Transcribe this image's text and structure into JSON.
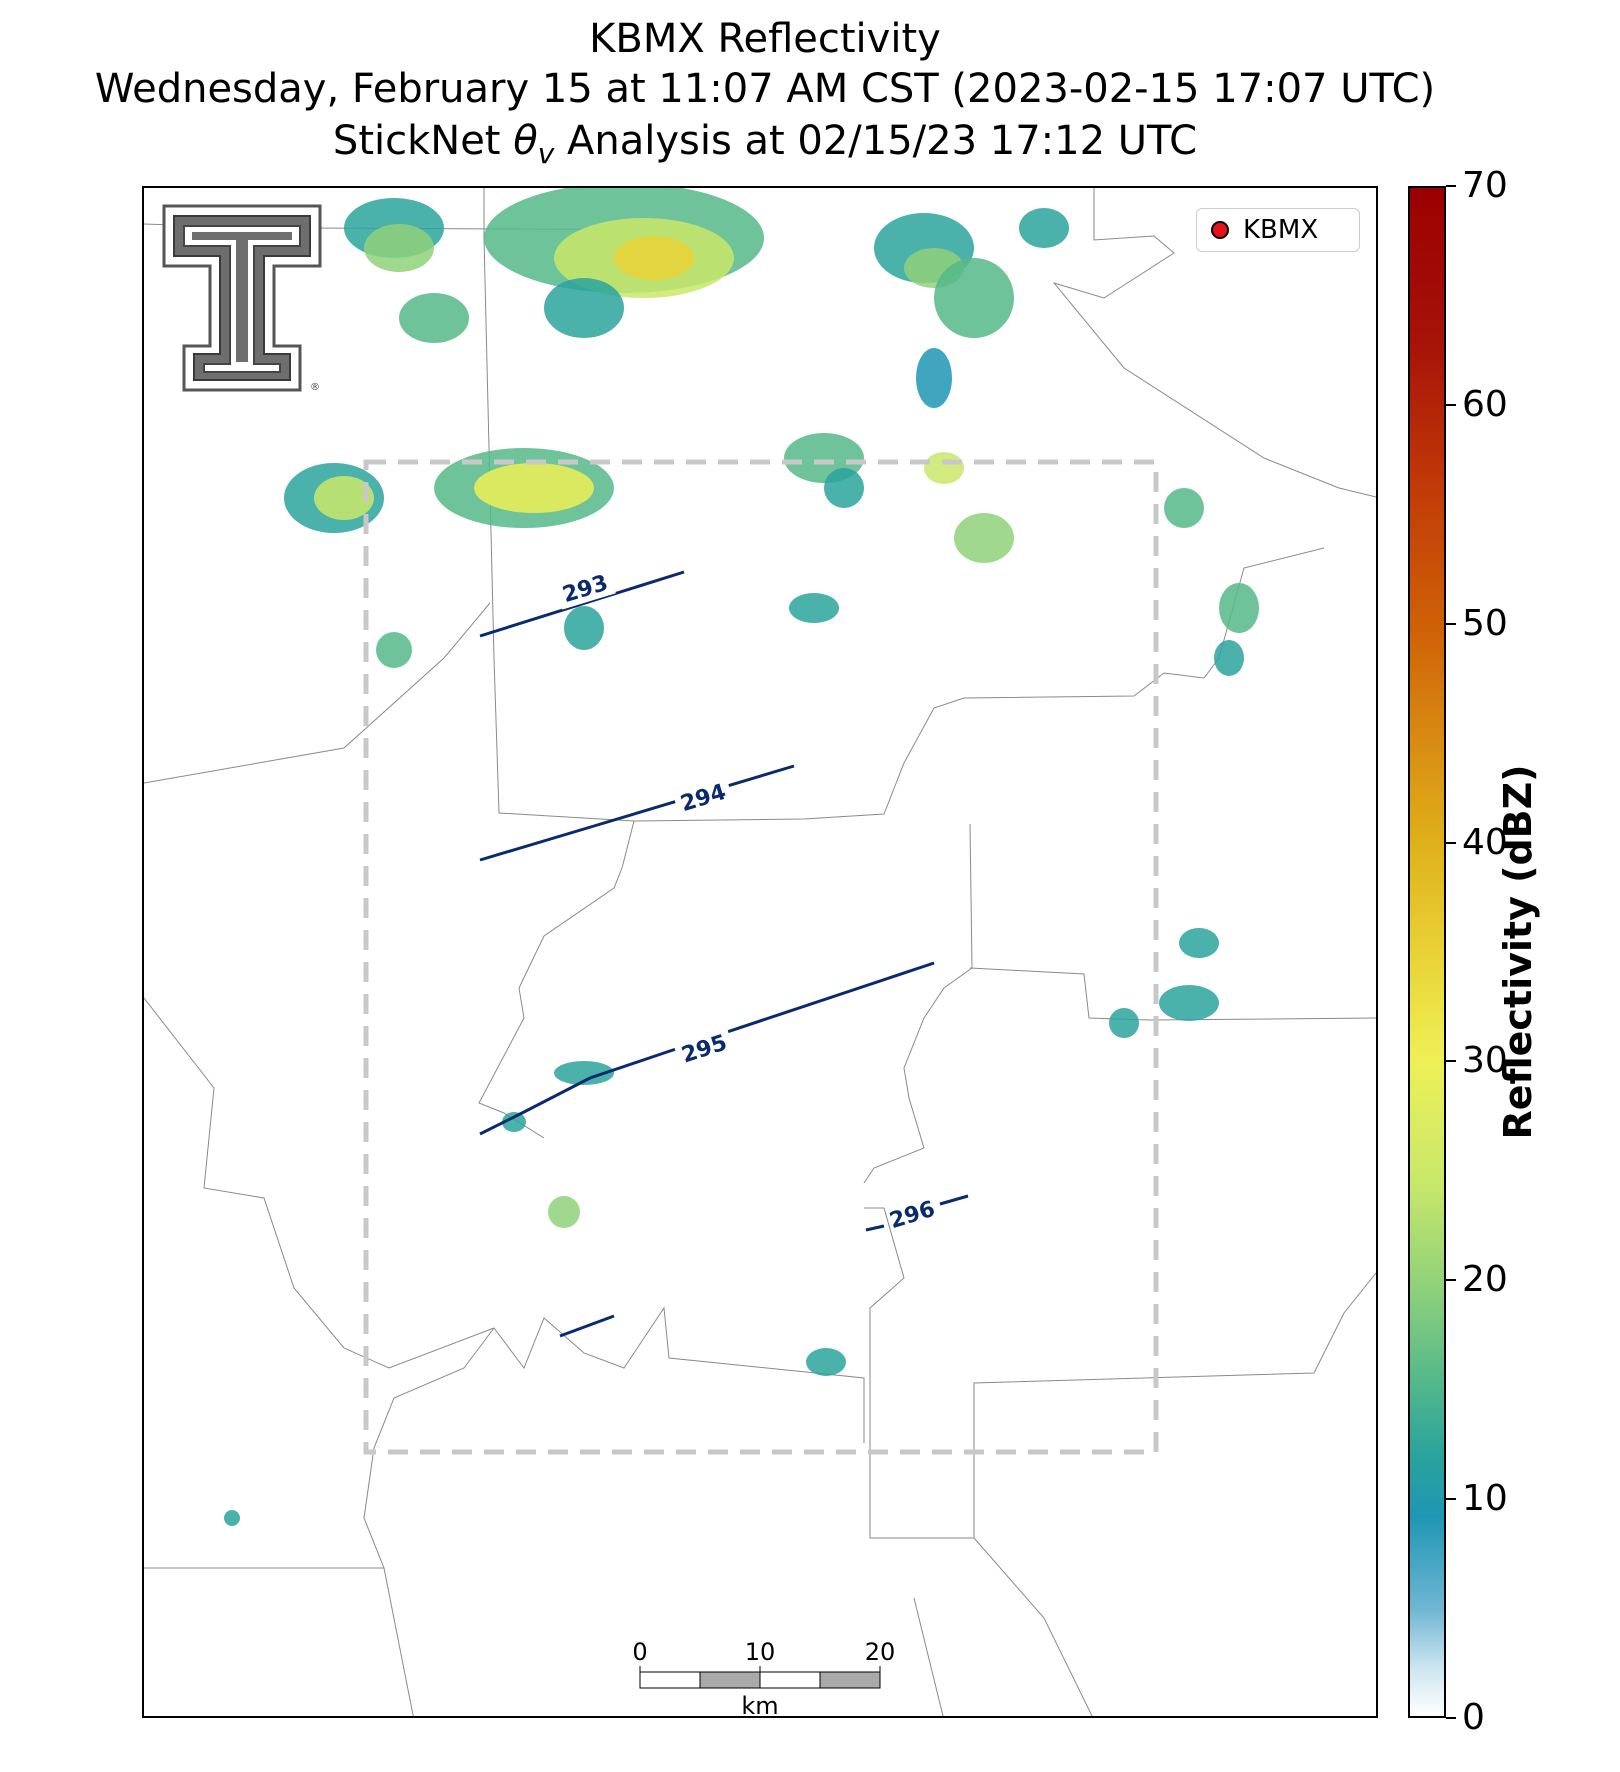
{
  "title": {
    "line1": "KBMX Reflectivity",
    "line2": "Wednesday, February 15 at 11:07 AM CST (2023-02-15 17:07 UTC)",
    "line3_prefix": "StickNet ",
    "line3_symbol": "θ",
    "line3_sub": "v",
    "line3_suffix": " Analysis at 02/15/23 17:12 UTC"
  },
  "legend": {
    "label": "KBMX",
    "marker_color": "#e8101a"
  },
  "contours": {
    "line_color": "#0a2a6e",
    "labels": [
      "293",
      "294",
      "295",
      "296"
    ]
  },
  "colorbar": {
    "label": "Reflectivity (dBZ)",
    "ticks": [
      "0",
      "10",
      "20",
      "30",
      "40",
      "50",
      "60",
      "70"
    ],
    "min": 0,
    "max": 70
  },
  "scalebar": {
    "labels": [
      "0",
      "10",
      "20"
    ],
    "unit": "km"
  },
  "logo": {
    "name": "Texas Tech Double T"
  }
}
